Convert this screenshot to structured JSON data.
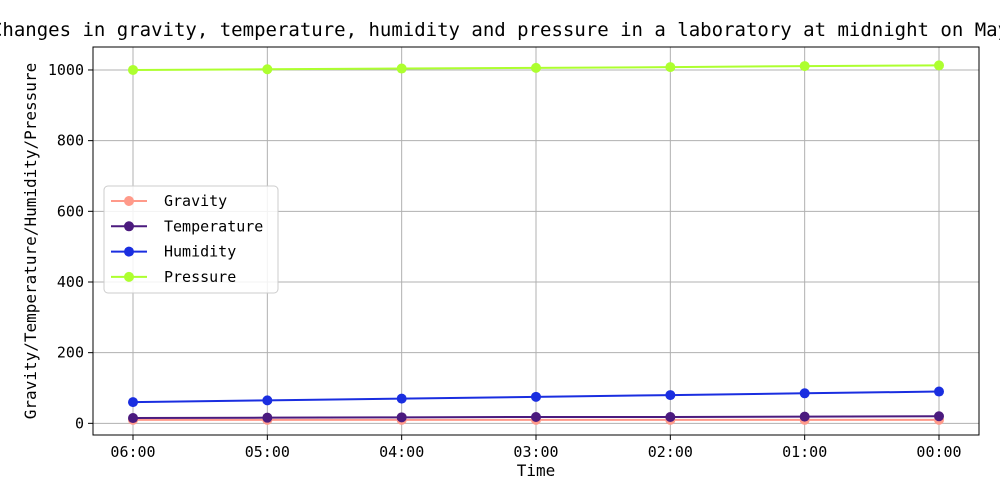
{
  "chart_data": {
    "type": "line",
    "title": "Changes in gravity, temperature, humidity and pressure in a laboratory at midnight on May",
    "xlabel": "Time",
    "ylabel": "Gravity/Temperature/Humidity/Pressure",
    "categories": [
      "06:00",
      "05:00",
      "04:00",
      "03:00",
      "02:00",
      "01:00",
      "00:00"
    ],
    "ylim": [
      -33,
      1065
    ],
    "yticks": [
      0,
      200,
      400,
      600,
      800,
      1000
    ],
    "grid": true,
    "legend_position": "center-left",
    "series": [
      {
        "name": "Gravity",
        "color": "#ff9a8a",
        "values": [
          9.8,
          9.8,
          9.8,
          9.8,
          9.8,
          9.8,
          9.8
        ]
      },
      {
        "name": "Temperature",
        "color": "#4b1a7e",
        "values": [
          15,
          16,
          17,
          18,
          18,
          19,
          20
        ]
      },
      {
        "name": "Humidity",
        "color": "#1a2ee0",
        "values": [
          60,
          65,
          70,
          75,
          80,
          85,
          90
        ]
      },
      {
        "name": "Pressure",
        "color": "#adff2f",
        "values": [
          1000,
          1002,
          1004,
          1006,
          1008,
          1011,
          1013
        ]
      }
    ]
  }
}
